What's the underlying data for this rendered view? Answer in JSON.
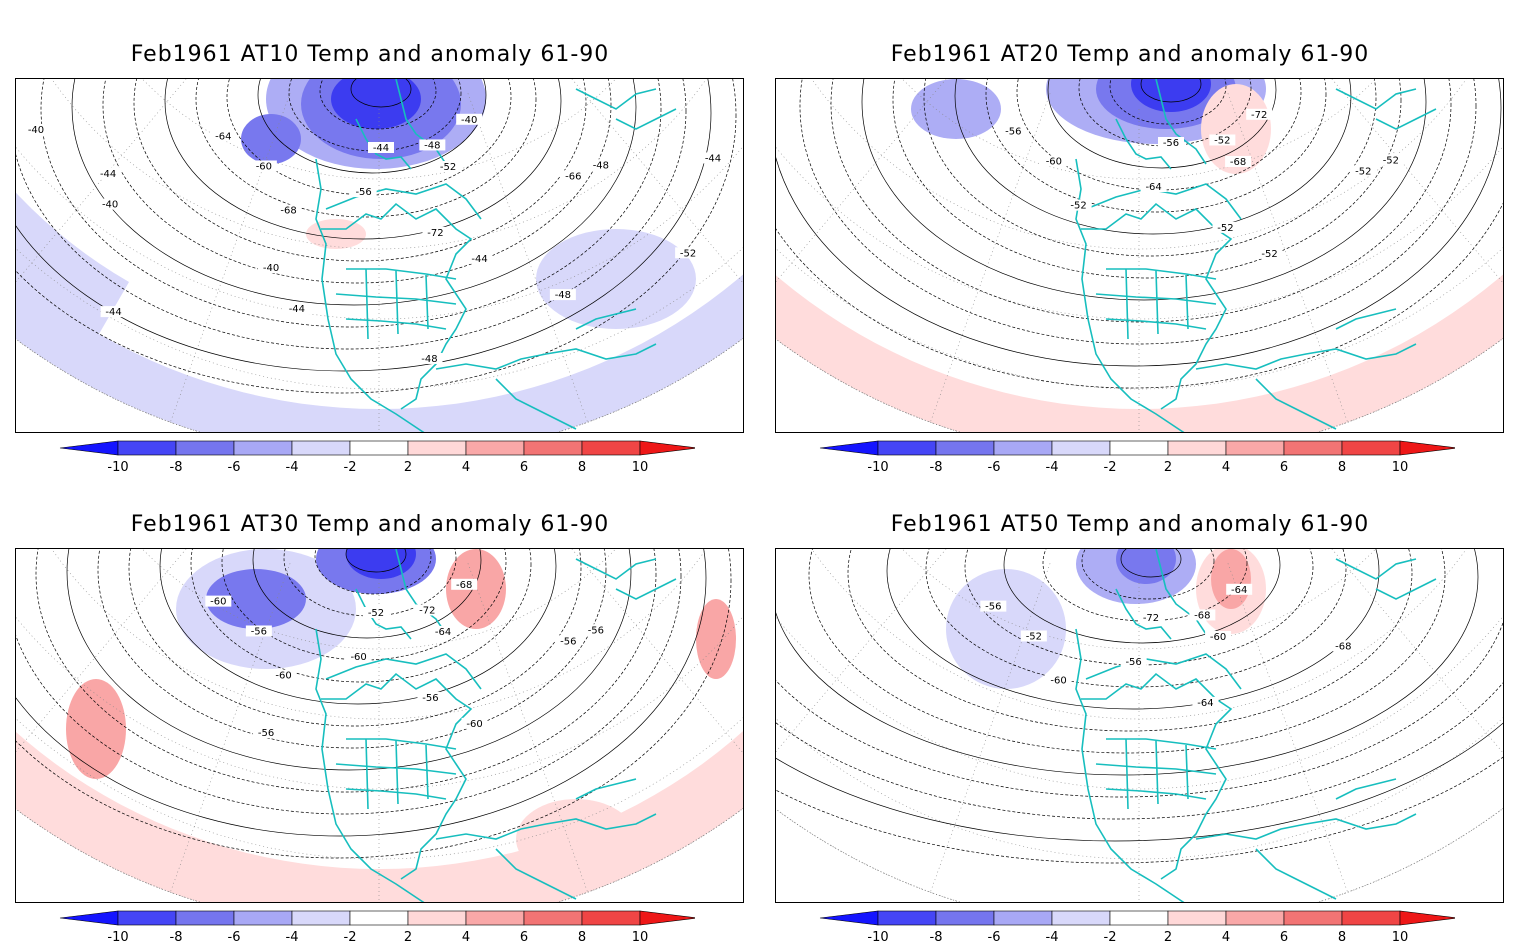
{
  "panels": [
    {
      "id": "at10",
      "title": "Feb1961 AT10 Temp and anomaly 61-90",
      "contour_labels": [
        "-44",
        "-48",
        "-40",
        "-52",
        "-56",
        "-60",
        "-64",
        "-68",
        "-72",
        "-66",
        "-48",
        "-44",
        "-40",
        "-44",
        "-40",
        "-44",
        "-48",
        "-44",
        "-52",
        "-48",
        "-44",
        "-40"
      ],
      "anomaly_regions": [
        {
          "sign": "negative",
          "level": -8,
          "area": "Hudson Bay / Greenland"
        },
        {
          "sign": "negative",
          "level": -4,
          "area": "Alaska / NE Pacific"
        },
        {
          "sign": "negative",
          "level": -2,
          "area": "Pacific outer ring"
        },
        {
          "sign": "negative",
          "level": -2,
          "area": "Central Atlantic"
        },
        {
          "sign": "positive",
          "level": 2,
          "area": "Central US"
        }
      ]
    },
    {
      "id": "at20",
      "title": "Feb1961 AT20 Temp and anomaly 61-90",
      "contour_labels": [
        "-56",
        "-52",
        "-72",
        "-68",
        "-64",
        "-60",
        "-56",
        "-52",
        "-52",
        "-52",
        "-52",
        "-52"
      ],
      "anomaly_regions": [
        {
          "sign": "negative",
          "level": -8,
          "area": "Canadian Arctic"
        },
        {
          "sign": "negative",
          "level": -4,
          "area": "Alaska"
        },
        {
          "sign": "positive",
          "level": 2,
          "area": "Pacific outer ring"
        },
        {
          "sign": "positive",
          "level": 4,
          "area": "Greenland"
        }
      ]
    },
    {
      "id": "at30",
      "title": "Feb1961 AT30 Temp and anomaly 61-90",
      "contour_labels": [
        "-52",
        "-72",
        "-68",
        "-64",
        "-60",
        "-56",
        "-60",
        "-60",
        "-56",
        "-56",
        "-56",
        "-60",
        "-56"
      ],
      "anomaly_regions": [
        {
          "sign": "negative",
          "level": -8,
          "area": "Canadian Arctic"
        },
        {
          "sign": "negative",
          "level": -4,
          "area": "Alaska / Canada"
        },
        {
          "sign": "positive",
          "level": 2,
          "area": "Pacific outer ring"
        },
        {
          "sign": "positive",
          "level": 4,
          "area": "Greenland"
        },
        {
          "sign": "positive",
          "level": 4,
          "area": "NE Pacific"
        },
        {
          "sign": "positive",
          "level": 2,
          "area": "Atlantic"
        }
      ]
    },
    {
      "id": "at50",
      "title": "Feb1961 AT50 Temp and anomaly 61-90",
      "contour_labels": [
        "-72",
        "-68",
        "-64",
        "-60",
        "-56",
        "-52",
        "-56",
        "-60",
        "-64",
        "-68"
      ],
      "anomaly_regions": [
        {
          "sign": "negative",
          "level": -8,
          "area": "Canadian Arctic"
        },
        {
          "sign": "negative",
          "level": -2,
          "area": "Alaska"
        },
        {
          "sign": "positive",
          "level": 6,
          "area": "Greenland"
        }
      ]
    }
  ],
  "colorbar": {
    "ticks": [
      "-10",
      "-8",
      "-6",
      "-4",
      "-2",
      "2",
      "4",
      "6",
      "8",
      "10"
    ],
    "colors": [
      "#1414ff",
      "#4545f5",
      "#7575ee",
      "#a8a8f5",
      "#d8d8fa",
      "#ffffff",
      "#ffd8d8",
      "#f9a8a8",
      "#f27474",
      "#f04545",
      "#ee1717"
    ]
  },
  "colors": {
    "coast": "#17bebe",
    "neg_strong": "#3c3cf0",
    "neg_mid": "#7878ee",
    "neg_light": "#adadf5",
    "neg_faint": "#d8d8fa",
    "pos_faint": "#ffdcdc",
    "pos_light": "#f9a6a6",
    "pos_mid": "#f27272"
  }
}
